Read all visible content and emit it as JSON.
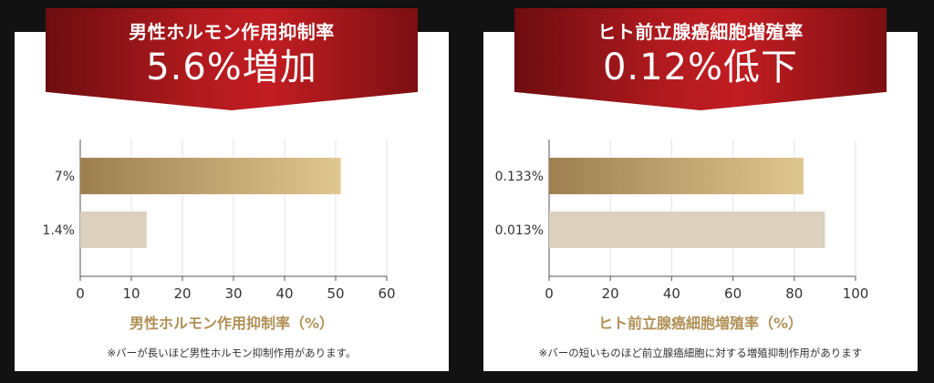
{
  "chart_data": [
    {
      "type": "bar",
      "orientation": "horizontal",
      "subtitle": "男性ホルモン作用抑制率",
      "title": "5.6%増加",
      "categories": [
        "7%",
        "1.4%"
      ],
      "values": [
        51,
        13
      ],
      "xticks": [
        0,
        10,
        20,
        30,
        40,
        50,
        60
      ],
      "xlim": [
        0,
        60
      ],
      "xlabel": "男性ホルモン作用抑制率（%）",
      "note": "※バーが長いほど男性ホルモン抑制作用があります。",
      "grid": true,
      "colors": [
        "#b59a66",
        "#dcd0bf"
      ]
    },
    {
      "type": "bar",
      "orientation": "horizontal",
      "subtitle": "ヒト前立腺癌細胞増殖率",
      "title": "0.12%低下",
      "categories": [
        "0.133%",
        "0.013%"
      ],
      "values": [
        83,
        90
      ],
      "xticks": [
        0,
        20,
        40,
        60,
        80,
        100
      ],
      "xlim": [
        0,
        100
      ],
      "xlabel": "ヒト前立腺癌細胞増殖率（%）",
      "note": "※バーの短いものほど前立腺癌細胞に対する増殖抑制作用があります",
      "grid": true,
      "colors": [
        "#b59a66",
        "#dcd0bf"
      ]
    }
  ]
}
